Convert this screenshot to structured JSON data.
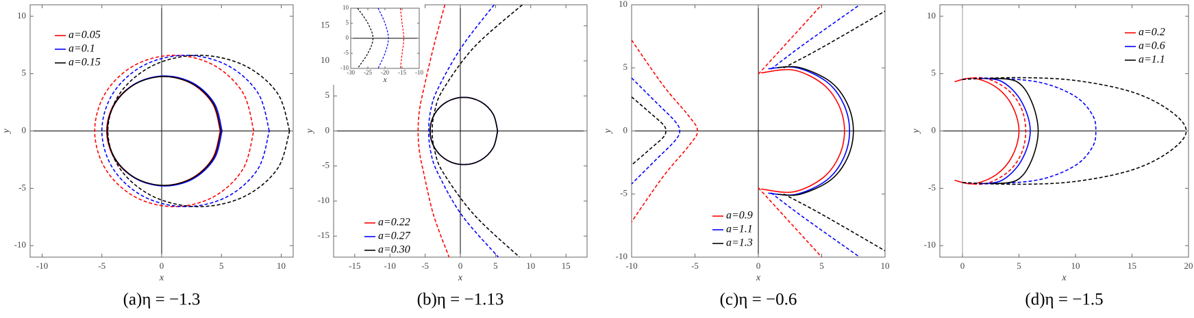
{
  "chart_data": [
    {
      "type": "line",
      "caption": "(a)η = −1.3",
      "xlabel": "x",
      "ylabel": "y",
      "xlim": [
        -11,
        11
      ],
      "ylim": [
        -11,
        11
      ],
      "xticks": [
        -10,
        -5,
        0,
        5,
        10
      ],
      "yticks": [
        -10,
        -5,
        0,
        5,
        10
      ],
      "legend": "upper left",
      "series": [
        {
          "name": "a=0.05",
          "color": "#ff0000",
          "curves": [
            {
              "style": "dashed",
              "x": [
                7.7,
                6.81,
                4.38,
                1.05,
                -2.28,
                -4.71,
                -5.6,
                -4.71,
                -2.28,
                1.05,
                4.38,
                6.81,
                7.7
              ],
              "y": [
                0,
                3.3,
                5.72,
                6.6,
                5.72,
                3.3,
                0,
                -3.3,
                -5.72,
                -6.6,
                -5.72,
                -3.3,
                0
              ]
            },
            {
              "style": "solid",
              "x": [
                4.9,
                4.26,
                2.53,
                0.15,
                -2.23,
                -3.96,
                -4.6,
                -3.96,
                -2.23,
                0.15,
                2.53,
                4.26,
                4.9
              ],
              "y": [
                0,
                2.38,
                4.11,
                4.75,
                4.11,
                2.38,
                0,
                -2.38,
                -4.11,
                -4.75,
                -4.11,
                -2.38,
                0
              ]
            }
          ]
        },
        {
          "name": "a=0.1",
          "color": "#0000ff",
          "curves": [
            {
              "style": "dashed",
              "x": [
                9,
                8.06,
                5.5,
                2,
                -1.5,
                -4.06,
                -5,
                -4.06,
                -1.5,
                2,
                5.5,
                8.06,
                9
              ],
              "y": [
                0,
                3.3,
                5.72,
                6.6,
                5.72,
                3.3,
                0,
                -3.3,
                -5.72,
                -6.6,
                -5.72,
                -3.3,
                0
              ]
            },
            {
              "style": "solid",
              "x": [
                5.05,
                4.41,
                2.65,
                0.25,
                -2.15,
                -3.91,
                -4.55,
                -3.91,
                -2.15,
                0.25,
                2.65,
                4.41,
                5.05
              ],
              "y": [
                0,
                2.4,
                4.16,
                4.8,
                4.16,
                2.4,
                0,
                -2.4,
                -4.16,
                -4.8,
                -4.16,
                -2.4,
                0
              ]
            }
          ]
        },
        {
          "name": "a=0.15",
          "color": "#000000",
          "curves": [
            {
              "style": "dashed",
              "x": [
                10.7,
                9.68,
                6.9,
                3.1,
                -0.7,
                -3.48,
                -4.5,
                -3.48,
                -0.7,
                3.1,
                6.9,
                9.68,
                10.7
              ],
              "y": [
                0,
                3.3,
                5.72,
                6.6,
                5.72,
                3.3,
                0,
                -3.3,
                -5.72,
                -6.6,
                -5.72,
                -3.3,
                0
              ]
            },
            {
              "style": "solid",
              "x": [
                4.95,
                4.31,
                2.58,
                0.2,
                -2.18,
                -3.91,
                -4.55,
                -3.91,
                -2.18,
                0.2,
                2.58,
                4.31,
                4.95
              ],
              "y": [
                0,
                2.38,
                4.11,
                4.75,
                4.11,
                2.38,
                0,
                -2.38,
                -4.11,
                -4.75,
                -4.11,
                -2.38,
                0
              ]
            }
          ]
        }
      ]
    },
    {
      "type": "line",
      "caption": "(b)η = −1.13",
      "xlabel": "x",
      "ylabel": "y",
      "xlim": [
        -18,
        18
      ],
      "ylim": [
        -18,
        18
      ],
      "xticks": [
        -15,
        -10,
        -5,
        0,
        5,
        10,
        15
      ],
      "yticks": [
        -15,
        -10,
        -5,
        0,
        5,
        10,
        15
      ],
      "legend": "lower left",
      "series": [
        {
          "name": "a=0.22",
          "color": "#ff0000",
          "curves": [
            {
              "style": "dashed",
              "x": [
                -2.2,
                -3.8,
                -5.2,
                -5.8,
                -6,
                -5.8,
                -5.2,
                -3.8,
                -1.6
              ],
              "y": [
                18,
                12,
                6,
                3,
                0,
                -3,
                -6,
                -12,
                -18
              ]
            },
            {
              "style": "solid",
              "x": [
                5.3,
                4.66,
                2.9,
                0.5,
                -1.9,
                -3.66,
                -4.3,
                -3.66,
                -1.9,
                0.5,
                2.9,
                4.66,
                5.3
              ],
              "y": [
                0,
                2.4,
                4.16,
                4.8,
                4.16,
                2.4,
                0,
                -2.4,
                -4.16,
                -4.8,
                -4.16,
                -2.4,
                0
              ]
            }
          ]
        },
        {
          "name": "a=0.27",
          "color": "#0000ff",
          "curves": [
            {
              "style": "dashed",
              "x": [
                4.8,
                0.2,
                -3.2,
                -4.2,
                -4.5,
                -4.2,
                -3.2,
                0.2,
                5.4
              ],
              "y": [
                18,
                12,
                6,
                3,
                0,
                -3,
                -6,
                -12,
                -18
              ]
            },
            {
              "style": "solid",
              "x": [
                5.3,
                4.66,
                2.9,
                0.5,
                -1.9,
                -3.66,
                -4.3,
                -3.66,
                -1.9,
                0.5,
                2.9,
                4.66,
                5.3
              ],
              "y": [
                0,
                2.4,
                4.16,
                4.8,
                4.16,
                2.4,
                0,
                -2.4,
                -4.16,
                -4.8,
                -4.16,
                -2.4,
                0
              ]
            }
          ]
        },
        {
          "name": "a=0.30",
          "color": "#000000",
          "curves": [
            {
              "style": "dashed",
              "x": [
                8.8,
                2,
                -2.4,
                -3.6,
                -4,
                -3.6,
                -2.4,
                2,
                8.4
              ],
              "y": [
                18,
                12,
                6,
                3,
                0,
                -3,
                -6,
                -12,
                -18
              ]
            },
            {
              "style": "solid",
              "x": [
                5.3,
                4.66,
                2.9,
                0.5,
                -1.9,
                -3.66,
                -4.3,
                -3.66,
                -1.9,
                0.5,
                2.9,
                4.66,
                5.3
              ],
              "y": [
                0,
                2.4,
                4.16,
                4.8,
                4.16,
                2.4,
                0,
                -2.4,
                -4.16,
                -4.8,
                -4.16,
                -2.4,
                0
              ]
            }
          ]
        }
      ],
      "inset": {
        "xlabel": "x",
        "xlim": [
          -30,
          -10
        ],
        "ylim": [
          -10,
          10
        ],
        "xticks": [
          -30,
          -25,
          -20,
          -15,
          -10
        ],
        "yticks": [
          -10,
          -5,
          0,
          5,
          10
        ],
        "series": [
          {
            "color": "#ff0000",
            "curves": [
              {
                "style": "dashed",
                "x": [
                  -15.5,
                  -15,
                  -14.5,
                  -15,
                  -15.5
                ],
                "y": [
                  10,
                  5,
                  0,
                  -5,
                  -10
                ]
              }
            ]
          },
          {
            "color": "#0000ff",
            "curves": [
              {
                "style": "dashed",
                "x": [
                  -22,
                  -20,
                  -19,
                  -20,
                  -22
                ],
                "y": [
                  10,
                  5,
                  0,
                  -5,
                  -10
                ]
              }
            ]
          },
          {
            "color": "#000000",
            "curves": [
              {
                "style": "dashed",
                "x": [
                  -28,
                  -25,
                  -23.5,
                  -25,
                  -28
                ],
                "y": [
                  10,
                  5,
                  0,
                  -5,
                  -10
                ]
              }
            ]
          }
        ]
      }
    },
    {
      "type": "line",
      "caption": "(c)η = −0.6",
      "xlabel": "x",
      "ylabel": "y",
      "xlim": [
        -10,
        10
      ],
      "ylim": [
        -10,
        10
      ],
      "xticks": [
        -10,
        -5,
        0,
        5,
        10
      ],
      "yticks": [
        -10,
        -5,
        0,
        5,
        10
      ],
      "legend": "lower left",
      "series": [
        {
          "name": "a=0.9",
          "color": "#ff0000",
          "curves": [
            {
              "style": "dashed",
              "x": [
                -10,
                -7.5,
                -5.5,
                -4.8,
                -5.5,
                -7.5,
                -10,
                null,
                0,
                2,
                5,
                null,
                0,
                2,
                5
              ],
              "y": [
                7.2,
                3.6,
                1.2,
                0,
                -1.2,
                -3.6,
                -7.2,
                null,
                4.5,
                6.7,
                10,
                null,
                -4.5,
                -6.7,
                -10
              ]
            },
            {
              "style": "solid",
              "x": [
                0.22,
                2.75,
                5.05,
                6.34,
                6.8,
                6.34,
                5.05,
                2.75,
                0.22
              ],
              "y": [
                4.6,
                4.83,
                3.75,
                2.07,
                0,
                -2.07,
                -3.75,
                -4.83,
                -4.6
              ]
            }
          ]
        },
        {
          "name": "a=1.1",
          "color": "#0000ff",
          "curves": [
            {
              "style": "dashed",
              "x": [
                -10,
                -8,
                -6.6,
                -6.2,
                -6.6,
                -8,
                -10,
                null,
                1,
                3.5,
                8,
                null,
                1,
                3.5,
                8
              ],
              "y": [
                4.2,
                2.2,
                0.8,
                0,
                -0.8,
                -2.2,
                -4.2,
                null,
                4.9,
                6.8,
                10,
                null,
                -4.9,
                -6.8,
                -10
              ]
            },
            {
              "style": "solid",
              "x": [
                0.78,
                2.99,
                5.38,
                6.72,
                7.2,
                6.72,
                5.38,
                2.99,
                0.78
              ],
              "y": [
                4.93,
                5.02,
                3.91,
                2.16,
                0,
                -2.16,
                -3.91,
                -5.02,
                -4.93
              ]
            }
          ]
        },
        {
          "name": "a=1.3",
          "color": "#000000",
          "curves": [
            {
              "style": "dashed",
              "x": [
                -10,
                -8.5,
                -7.5,
                -7.3,
                -7.5,
                -8.5,
                -10,
                null,
                2,
                5,
                10,
                null,
                2,
                5,
                10
              ],
              "y": [
                2.7,
                1.4,
                0.5,
                0,
                -0.5,
                -1.4,
                -2.7,
                null,
                5,
                6.6,
                9.5,
                null,
                -5,
                -6.6,
                -9.5
              ]
            },
            {
              "style": "solid",
              "x": [
                1.51,
                3.29,
                5.68,
                7.02,
                7.5,
                7.02,
                5.68,
                3.29,
                1.51
              ],
              "y": [
                5.02,
                5.02,
                3.91,
                2.16,
                0,
                -2.16,
                -3.91,
                -5.02,
                -5.02
              ]
            }
          ]
        }
      ]
    },
    {
      "type": "line",
      "caption": "(d)η = −1.5",
      "xlabel": "x",
      "ylabel": "y",
      "xlim": [
        -2,
        20
      ],
      "ylim": [
        -11,
        11
      ],
      "xticks": [
        0,
        5,
        10,
        15,
        20
      ],
      "yticks": [
        -10,
        -5,
        0,
        5,
        10
      ],
      "legend": "upper right",
      "series": [
        {
          "name": "a=0.2",
          "color": "#ff0000",
          "curves": [
            {
              "style": "dashed",
              "x": [
                0,
                2,
                4,
                5.2,
                5.6,
                5.2,
                4,
                2,
                0
              ],
              "y": [
                4.5,
                4.6,
                3.6,
                2,
                0,
                -2,
                -3.6,
                -4.6,
                -4.5
              ]
            },
            {
              "style": "solid",
              "x": [
                -0.7,
                1,
                3,
                4.4,
                5,
                4.4,
                3,
                1,
                -0.7
              ],
              "y": [
                4.3,
                4.6,
                3.8,
                2.2,
                0,
                -2.2,
                -3.8,
                -4.6,
                -4.3
              ]
            }
          ]
        },
        {
          "name": "a=0.6",
          "color": "#0000ff",
          "curves": [
            {
              "style": "dashed",
              "x": [
                0,
                3,
                7,
                10,
                11.5,
                11.8,
                11.5,
                10,
                7,
                3,
                0
              ],
              "y": [
                4.5,
                4.6,
                4.2,
                3,
                1.4,
                0,
                -1.4,
                -3,
                -4.2,
                -4.6,
                -4.5
              ]
            },
            {
              "style": "solid",
              "x": [
                1.5,
                3.5,
                5.2,
                6,
                5.2,
                3.5,
                1.5
              ],
              "y": [
                4.6,
                4.3,
                2.6,
                0,
                -2.6,
                -4.3,
                -4.6
              ]
            }
          ]
        },
        {
          "name": "a=1.1",
          "color": "#000000",
          "curves": [
            {
              "style": "dashed",
              "x": [
                0,
                5,
                10,
                15,
                18.3,
                19.8,
                18.3,
                15,
                10,
                5,
                0
              ],
              "y": [
                4.5,
                4.65,
                4.4,
                3.4,
                1.8,
                0,
                -1.8,
                -3.4,
                -4.4,
                -4.65,
                -4.5
              ]
            },
            {
              "style": "solid",
              "x": [
                2.5,
                4.8,
                6.1,
                6.7,
                6.1,
                4.8,
                2.5
              ],
              "y": [
                4.6,
                4.3,
                2.6,
                0,
                -2.6,
                -4.3,
                -4.6
              ]
            }
          ]
        }
      ]
    }
  ]
}
